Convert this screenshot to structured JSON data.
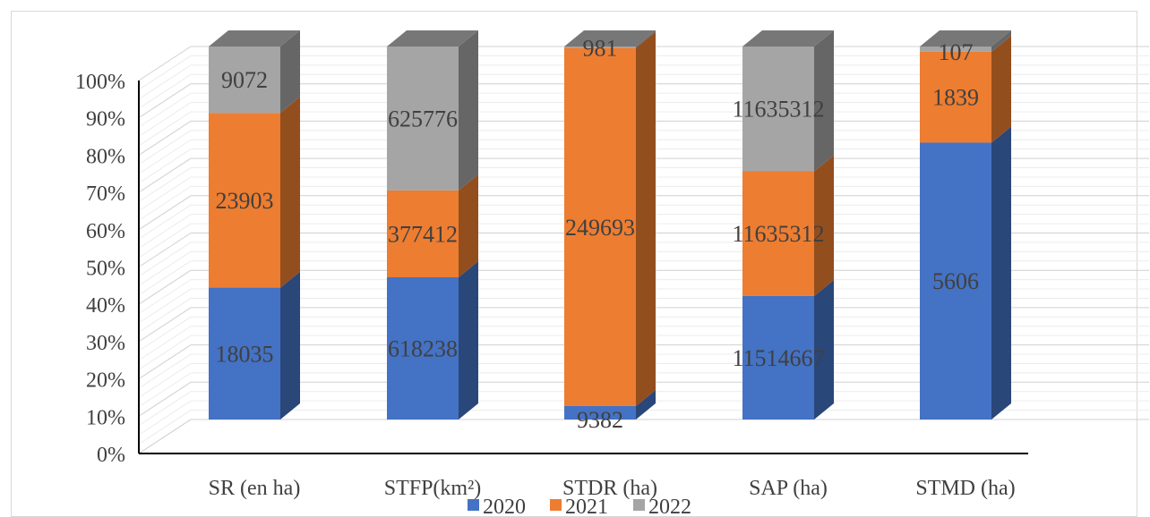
{
  "chart_data": {
    "type": "bar",
    "stacked": "percent",
    "three_d": true,
    "categories": [
      "SR (en ha)",
      "STFP(km²)",
      "STDR (ha)",
      "SAP (ha)",
      "STMD (ha)"
    ],
    "series": [
      {
        "name": "2020",
        "color": "#4472c4",
        "values": [
          18035,
          618238,
          9382,
          11514667,
          5606
        ],
        "labels": [
          "18035",
          "618238",
          "9382",
          "11514667",
          "5606"
        ]
      },
      {
        "name": "2021",
        "color": "#ed7d31",
        "values": [
          23903,
          377412,
          249693,
          11635312,
          1839
        ],
        "labels": [
          "23903",
          "377412",
          "249693",
          "11635312",
          "1839"
        ]
      },
      {
        "name": "2022",
        "color": "#a5a5a5",
        "values": [
          9072,
          625776,
          981,
          11635312,
          107
        ],
        "labels": [
          "9072",
          "625776",
          "981",
          "11635312",
          "107"
        ]
      }
    ],
    "y_ticks": [
      "0%",
      "10%",
      "20%",
      "30%",
      "40%",
      "50%",
      "60%",
      "70%",
      "80%",
      "90%",
      "100%"
    ],
    "ylim": [
      0,
      100
    ],
    "grid": true,
    "legend_position": "bottom",
    "title": "",
    "xlabel": "",
    "ylabel": ""
  }
}
